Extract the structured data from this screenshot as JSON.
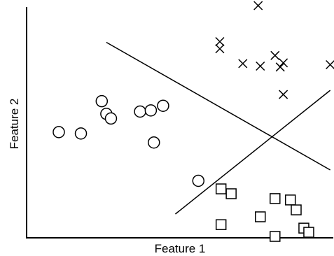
{
  "chart_data": {
    "type": "scatter",
    "title": "",
    "xlabel": "Feature 1",
    "ylabel": "Feature 2",
    "xlim": [
      0,
      10
    ],
    "ylim": [
      0,
      10
    ],
    "grid": false,
    "legend": "none",
    "colors": {
      "marker_stroke": "#000000",
      "marker_fill": "#ffffff",
      "line": "#000000",
      "axis": "#000000"
    },
    "series": [
      {
        "marker": "circle",
        "x": [
          1.05,
          1.77,
          2.45,
          2.6,
          2.75,
          3.7,
          4.05,
          4.45,
          4.15,
          5.6
        ],
        "y": [
          4.58,
          4.52,
          5.92,
          5.37,
          5.17,
          5.47,
          5.52,
          5.72,
          4.13,
          2.47
        ]
      },
      {
        "marker": "x",
        "x": [
          6.3,
          6.3,
          7.05,
          7.55,
          7.62,
          8.1,
          8.27,
          8.37,
          8.37,
          9.9
        ],
        "y": [
          8.5,
          8.19,
          7.55,
          10.06,
          7.44,
          7.9,
          7.4,
          7.58,
          6.21,
          7.5
        ]
      },
      {
        "marker": "square",
        "x": [
          6.34,
          6.67,
          6.34,
          7.62,
          8.1,
          8.6,
          8.79,
          9.04,
          9.2,
          8.1
        ],
        "y": [
          2.12,
          1.91,
          0.57,
          0.91,
          1.7,
          1.64,
          1.21,
          0.42,
          0.24,
          0.06
        ]
      }
    ],
    "lines": [
      {
        "x": [
          2.6,
          9.9
        ],
        "y": [
          8.47,
          2.94
        ]
      },
      {
        "x": [
          4.85,
          9.9
        ],
        "y": [
          1.03,
          6.39
        ]
      }
    ]
  }
}
